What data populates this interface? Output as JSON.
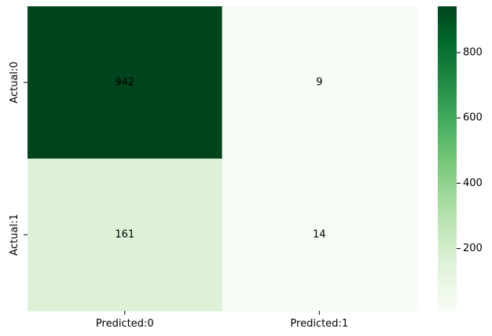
{
  "chart_data": {
    "type": "heatmap",
    "x_categories": [
      "Predicted:0",
      "Predicted:1"
    ],
    "y_categories": [
      "Actual:0",
      "Actual:1"
    ],
    "values": [
      [
        942,
        9
      ],
      [
        161,
        14
      ]
    ],
    "annotations": [
      [
        "942",
        "9"
      ],
      [
        "161",
        "14"
      ]
    ],
    "colormap": "Greens",
    "colorbar": {
      "range": [
        9,
        942
      ],
      "ticks": [
        200,
        400,
        600,
        800
      ],
      "tick_labels": [
        "200",
        "400",
        "600",
        "800"
      ]
    },
    "title": "",
    "xlabel": "",
    "ylabel": "",
    "colors": {
      "low": "#f7fcf5",
      "mid": "#74c476",
      "high": "#00441b"
    }
  }
}
